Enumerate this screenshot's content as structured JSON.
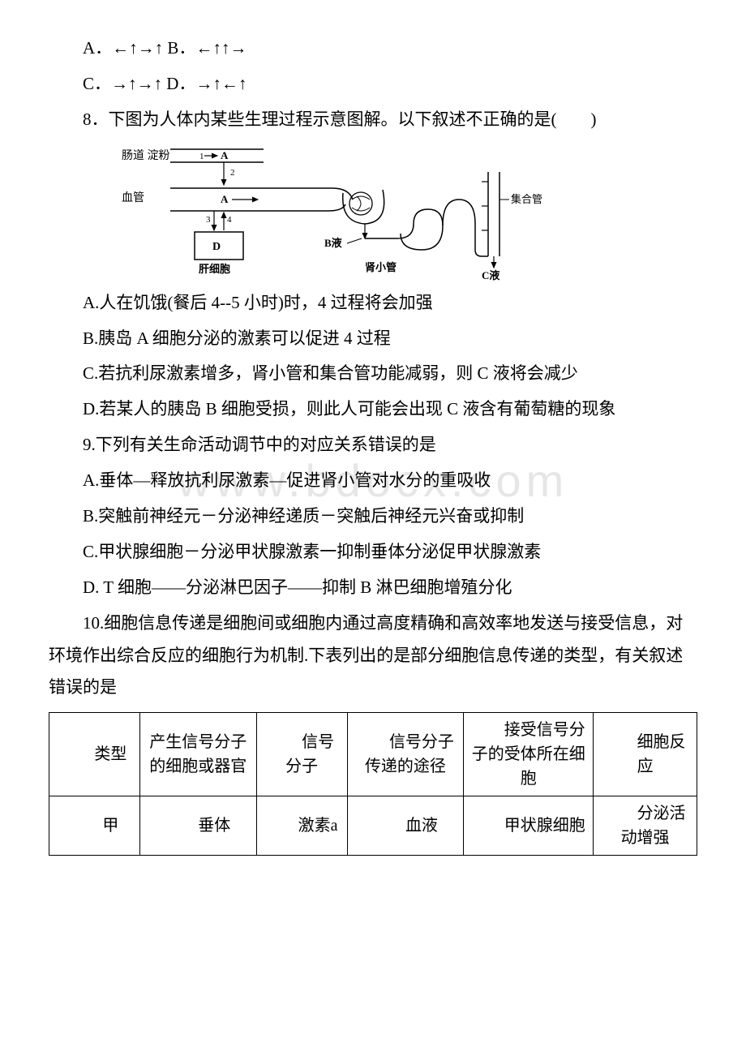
{
  "watermark": "www.bdocx.com",
  "q7": {
    "optA": "A．←↑→↑ B．←↑↑→",
    "optC": "C．→↑→↑ D．→↑←↑"
  },
  "q8": {
    "stem": "8．下图为人体内某些生理过程示意图解。以下叙述不正确的是(　　)",
    "diagram": {
      "labels": {
        "intestine": "肠道 淀粉",
        "arrowA": "A",
        "vessel": "血管",
        "num1": "1",
        "num2": "2",
        "num3": "3",
        "num4": "4",
        "letterA2": "A",
        "D": "D",
        "liver": "肝细胞",
        "Bfluid": "B液",
        "tubule": "肾小管",
        "collect": "集合管",
        "Cfluid": "C液"
      },
      "colors": {
        "stroke": "#000000",
        "fill_white": "#ffffff",
        "fill_liver": "#ffffff"
      }
    },
    "optA": "A.人在饥饿(餐后 4--5 小时)时，4 过程将会加强",
    "optB": "B.胰岛 A 细胞分泌的激素可以促进 4 过程",
    "optC": "C.若抗利尿激素增多，肾小管和集合管功能减弱，则 C 液将会减少",
    "optD": "D.若某人的胰岛 B 细胞受损，则此人可能会出现 C 液含有葡萄糖的现象"
  },
  "q9": {
    "stem": "9.下列有关生命活动调节中的对应关系错误的是",
    "optA": "A.垂体—释放抗利尿激素—促进肾小管对水分的重吸收",
    "optB": "B.突触前神经元－分泌神经递质－突触后神经元兴奋或抑制",
    "optC": "C.甲状腺细胞－分泌甲状腺激素一抑制垂体分泌促甲状腺激素",
    "optD": "D. T 细胞——分泌淋巴因子——抑制 B 淋巴细胞增殖分化"
  },
  "q10": {
    "stem": "10.细胞信息传递是细胞间或细胞内通过高度精确和高效率地发送与接受信息，对环境作出综合反应的细胞行为机制.下表列出的是部分细胞信息传递的类型，有关叙述错误的是",
    "table": {
      "columns": [
        "类型",
        "产生信号分子\n的细胞或器官",
        "信号分子",
        "信号分子传递的途径",
        "接受信号分子的受体所在细胞",
        "细胞反应"
      ],
      "col_widths": [
        "14%",
        "18%",
        "14%",
        "18%",
        "20%",
        "16%"
      ],
      "rows": [
        [
          "甲",
          "垂体",
          "激素a",
          "血液",
          "甲状腺细胞",
          "分泌活动增强"
        ]
      ],
      "border_color": "#000000",
      "font_size": 20
    }
  }
}
